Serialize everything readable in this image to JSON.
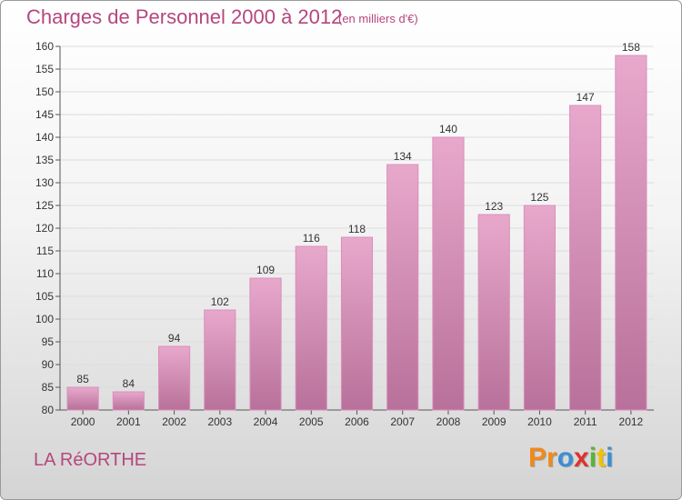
{
  "header": {
    "title": "Charges de Personnel 2000 à 2012",
    "unit": "(en milliers d'€)"
  },
  "footer": {
    "commune": "LA RéORTHE",
    "logo": {
      "letters": [
        "P",
        "r",
        "o",
        "x",
        "i",
        "t",
        "i"
      ],
      "colors": [
        "#f08a1c",
        "#f08a1c",
        "#3a8fd6",
        "#e0312f",
        "#58b531",
        "#f2c200",
        "#3a8fd6"
      ]
    }
  },
  "colors": {
    "bar_top": "#e8a8cc",
    "bar_bottom": "#b8719a",
    "bar_edge": "#d98fba",
    "text_accent": "#b5477e"
  },
  "chart_data": {
    "type": "bar",
    "title": "Charges de Personnel 2000 à 2012",
    "subtitle": "(en milliers d'€)",
    "xlabel": "",
    "ylabel": "",
    "categories": [
      "2000",
      "2001",
      "2002",
      "2003",
      "2004",
      "2005",
      "2006",
      "2007",
      "2008",
      "2009",
      "2010",
      "2011",
      "2012"
    ],
    "values": [
      85,
      84,
      94,
      102,
      109,
      116,
      118,
      134,
      140,
      123,
      125,
      147,
      158
    ],
    "ylim": [
      80,
      160
    ],
    "yticks": [
      80,
      85,
      90,
      95,
      100,
      105,
      110,
      115,
      120,
      125,
      130,
      135,
      140,
      145,
      150,
      155,
      160
    ],
    "grid": true,
    "legend": "none"
  }
}
